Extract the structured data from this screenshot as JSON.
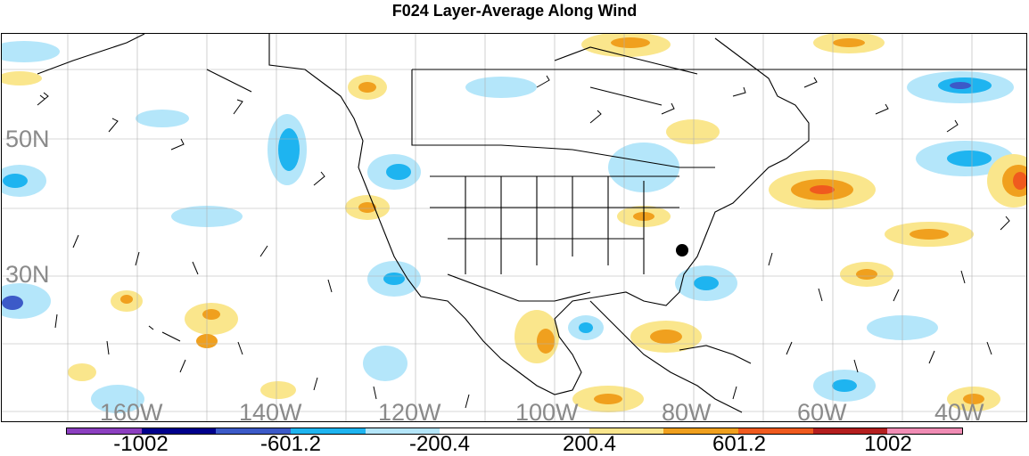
{
  "title": "F024 Layer-Average Along Wind",
  "lat_labels": [
    "50N",
    "30N"
  ],
  "lon_labels": [
    "160W",
    "140W",
    "120W",
    "100W",
    "80W",
    "60W",
    "40W"
  ],
  "colorbar": {
    "colors": [
      "#8c3fc0",
      "#00008c",
      "#3c5ac8",
      "#1eb4f0",
      "#b4e6fa",
      "#ffffff",
      "#ffffff",
      "#fae68c",
      "#f0a01e",
      "#f05a1e",
      "#b41e1e",
      "#f08cb4"
    ],
    "labels": [
      "-1002",
      "-601.2",
      "-200.4",
      "200.4",
      "601.2",
      "1002"
    ]
  },
  "marker": {
    "name": "black-dot-marker"
  }
}
